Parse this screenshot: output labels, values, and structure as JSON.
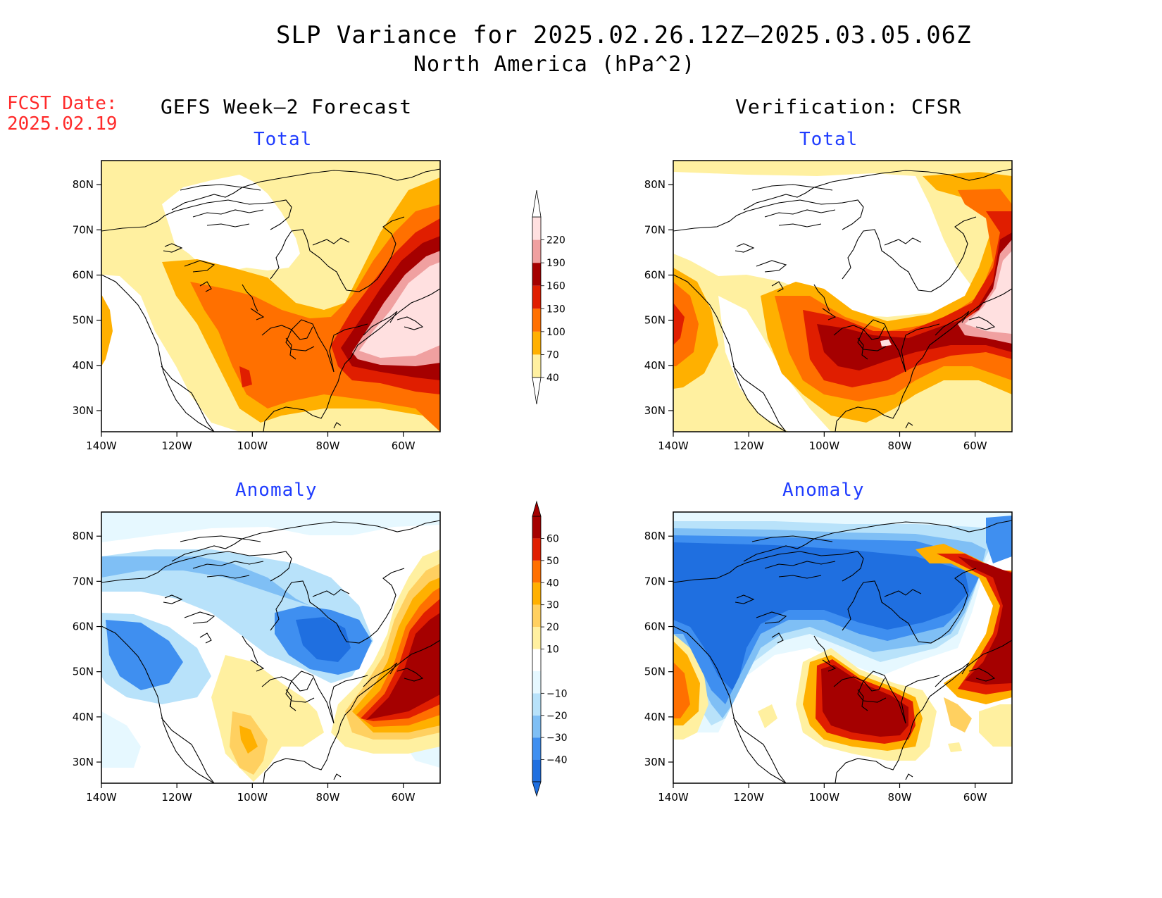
{
  "header": {
    "title": "SLP Variance for 2025.02.26.12Z–2025.03.05.06Z",
    "subtitle": "North America (hPa^2)"
  },
  "fcst_date": {
    "label": "FCST Date:",
    "value": "2025.02.19"
  },
  "columns": {
    "left": "GEFS Week–2 Forecast",
    "right": "Verification: CFSR"
  },
  "panels": {
    "top_left": "Total",
    "top_right": "Total",
    "bottom_left": "Anomaly",
    "bottom_right": "Anomaly"
  },
  "axes": {
    "lon_ticks": [
      "140W",
      "120W",
      "100W",
      "80W",
      "60W"
    ],
    "lat_ticks": [
      "80N",
      "70N",
      "60N",
      "50N",
      "40N",
      "30N"
    ]
  },
  "colorbars": {
    "total": {
      "labels": [
        "40",
        "70",
        "100",
        "130",
        "160",
        "190",
        "220"
      ],
      "colors": [
        "#fff0a0",
        "#ffb000",
        "#ff7000",
        "#e01e00",
        "#a50000",
        "#f0a0a0",
        "#ffe0e0"
      ]
    },
    "anomaly": {
      "labels": [
        "−40",
        "−30",
        "−20",
        "−10",
        "10",
        "20",
        "30",
        "40",
        "50",
        "60"
      ],
      "colors": [
        "#1f6fe0",
        "#3f8ff0",
        "#7fbff5",
        "#b8e2fa",
        "#e6f8ff",
        "#ffffff",
        "#fff0a0",
        "#ffd060",
        "#ffb000",
        "#ff7000",
        "#e01e00",
        "#a50000"
      ]
    }
  }
}
